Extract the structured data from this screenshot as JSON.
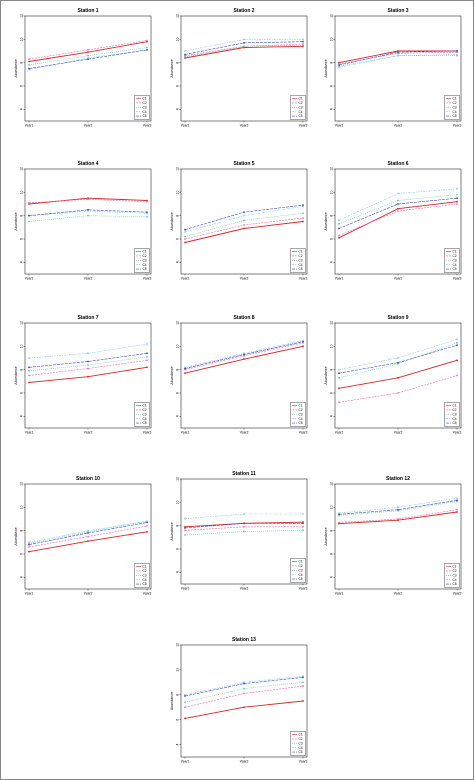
{
  "figure": {
    "colors": {
      "C1": "#d62728",
      "C2": "#ff69b4",
      "C3": "#66cdaa",
      "C4": "#87ceeb",
      "C5": "#3b4cc0"
    },
    "dashes": {
      "C1": "",
      "C2": "2,1",
      "C3": "1,1",
      "C4": "2,1,1,1",
      "C5": "3,1"
    }
  },
  "chart_data": [
    {
      "type": "line",
      "title": "Station 1",
      "xlabel": "",
      "ylabel": "Abundance",
      "categories": [
        "Year1",
        "Year2",
        "Year3"
      ],
      "ylim": [
        3,
        12
      ],
      "yticks": [
        4,
        6,
        8,
        10,
        12
      ],
      "legend": "bottom-right",
      "series": [
        {
          "name": "C1",
          "values": [
            8.1,
            8.9,
            9.8
          ]
        },
        {
          "name": "C2",
          "values": [
            8.3,
            9.1,
            9.9
          ]
        },
        {
          "name": "C3",
          "values": [
            7.8,
            8.6,
            9.3
          ]
        },
        {
          "name": "C4",
          "values": [
            7.4,
            8.4,
            9.1
          ]
        },
        {
          "name": "C5",
          "values": [
            7.5,
            8.3,
            9.1
          ]
        }
      ]
    },
    {
      "type": "line",
      "title": "Station 2",
      "xlabel": "",
      "ylabel": "Abundance",
      "categories": [
        "Year1",
        "Year2",
        "Year3"
      ],
      "ylim": [
        3,
        12
      ],
      "yticks": [
        4,
        6,
        8,
        10,
        12
      ],
      "legend": "bottom-right",
      "series": [
        {
          "name": "C1",
          "values": [
            8.4,
            9.3,
            9.4
          ]
        },
        {
          "name": "C2",
          "values": [
            8.6,
            9.4,
            9.6
          ]
        },
        {
          "name": "C3",
          "values": [
            8.5,
            9.4,
            9.5
          ]
        },
        {
          "name": "C4",
          "values": [
            9.0,
            10.0,
            10.0
          ]
        },
        {
          "name": "C5",
          "values": [
            8.7,
            9.7,
            9.8
          ]
        }
      ]
    },
    {
      "type": "line",
      "title": "Station 3",
      "xlabel": "",
      "ylabel": "Abundance",
      "categories": [
        "Year1",
        "Year2",
        "Year3"
      ],
      "ylim": [
        3,
        12
      ],
      "yticks": [
        4,
        6,
        8,
        10,
        12
      ],
      "legend": "bottom-right",
      "series": [
        {
          "name": "C1",
          "values": [
            8.0,
            9.0,
            9.0
          ]
        },
        {
          "name": "C2",
          "values": [
            7.9,
            8.8,
            8.9
          ]
        },
        {
          "name": "C3",
          "values": [
            7.7,
            8.6,
            8.6
          ]
        },
        {
          "name": "C4",
          "values": [
            7.6,
            8.6,
            8.7
          ]
        },
        {
          "name": "C5",
          "values": [
            7.8,
            8.9,
            9.0
          ]
        }
      ]
    },
    {
      "type": "line",
      "title": "Station 4",
      "xlabel": "",
      "ylabel": "Abundance",
      "categories": [
        "Year1",
        "Year2",
        "Year3"
      ],
      "ylim": [
        3,
        12
      ],
      "yticks": [
        4,
        6,
        8,
        10,
        12
      ],
      "legend": "bottom-right",
      "series": [
        {
          "name": "C1",
          "values": [
            9.0,
            9.5,
            9.3
          ]
        },
        {
          "name": "C2",
          "values": [
            9.1,
            9.4,
            9.2
          ]
        },
        {
          "name": "C3",
          "values": [
            7.5,
            8.0,
            7.9
          ]
        },
        {
          "name": "C4",
          "values": [
            8.0,
            8.4,
            8.2
          ]
        },
        {
          "name": "C5",
          "values": [
            8.0,
            8.5,
            8.3
          ]
        }
      ]
    },
    {
      "type": "line",
      "title": "Station 5",
      "xlabel": "",
      "ylabel": "Abundance",
      "categories": [
        "Year1",
        "Year2",
        "Year3"
      ],
      "ylim": [
        3,
        12
      ],
      "yticks": [
        4,
        6,
        8,
        10,
        12
      ],
      "legend": "bottom-right",
      "series": [
        {
          "name": "C1",
          "values": [
            5.7,
            6.9,
            7.5
          ]
        },
        {
          "name": "C2",
          "values": [
            6.0,
            7.2,
            7.8
          ]
        },
        {
          "name": "C3",
          "values": [
            6.2,
            7.6,
            8.2
          ]
        },
        {
          "name": "C4",
          "values": [
            6.6,
            8.0,
            8.8
          ]
        },
        {
          "name": "C5",
          "values": [
            6.8,
            8.3,
            8.9
          ]
        }
      ]
    },
    {
      "type": "line",
      "title": "Station 6",
      "xlabel": "",
      "ylabel": "Abundance",
      "categories": [
        "Year1",
        "Year2",
        "Year3"
      ],
      "ylim": [
        3,
        12
      ],
      "yticks": [
        4,
        6,
        8,
        10,
        12
      ],
      "legend": "bottom-right",
      "series": [
        {
          "name": "C1",
          "values": [
            6.1,
            8.6,
            9.2
          ]
        },
        {
          "name": "C2",
          "values": [
            6.3,
            8.4,
            9.0
          ]
        },
        {
          "name": "C3",
          "values": [
            7.3,
            9.3,
            9.8
          ]
        },
        {
          "name": "C4",
          "values": [
            7.6,
            9.9,
            10.3
          ]
        },
        {
          "name": "C5",
          "values": [
            6.9,
            9.0,
            9.5
          ]
        }
      ]
    },
    {
      "type": "line",
      "title": "Station 7",
      "xlabel": "",
      "ylabel": "Abundance",
      "categories": [
        "Year1",
        "Year2",
        "Year3"
      ],
      "ylim": [
        3,
        12
      ],
      "yticks": [
        4,
        6,
        8,
        10,
        12
      ],
      "legend": "bottom-right",
      "series": [
        {
          "name": "C1",
          "values": [
            6.9,
            7.4,
            8.2
          ]
        },
        {
          "name": "C2",
          "values": [
            7.5,
            8.1,
            8.8
          ]
        },
        {
          "name": "C3",
          "values": [
            7.9,
            8.4,
            9.1
          ]
        },
        {
          "name": "C4",
          "values": [
            9.0,
            9.4,
            10.2
          ]
        },
        {
          "name": "C5",
          "values": [
            8.2,
            8.7,
            9.4
          ]
        }
      ]
    },
    {
      "type": "line",
      "title": "Station 8",
      "xlabel": "",
      "ylabel": "Abundance",
      "categories": [
        "Year1",
        "Year2",
        "Year3"
      ],
      "ylim": [
        3,
        12
      ],
      "yticks": [
        4,
        6,
        8,
        10,
        12
      ],
      "legend": "bottom-right",
      "series": [
        {
          "name": "C1",
          "values": [
            7.7,
            8.9,
            10.0
          ]
        },
        {
          "name": "C2",
          "values": [
            8.0,
            9.2,
            10.3
          ]
        },
        {
          "name": "C3",
          "values": [
            8.1,
            9.3,
            10.4
          ]
        },
        {
          "name": "C4",
          "values": [
            8.2,
            9.4,
            10.5
          ]
        },
        {
          "name": "C5",
          "values": [
            8.1,
            9.3,
            10.4
          ]
        }
      ]
    },
    {
      "type": "line",
      "title": "Station 9",
      "xlabel": "",
      "ylabel": "Abundance",
      "categories": [
        "Year1",
        "Year2",
        "Year3"
      ],
      "ylim": [
        3,
        12
      ],
      "yticks": [
        4,
        6,
        8,
        10,
        12
      ],
      "legend": "bottom-right",
      "series": [
        {
          "name": "C1",
          "values": [
            6.4,
            7.3,
            8.8
          ]
        },
        {
          "name": "C2",
          "values": [
            5.2,
            6.0,
            7.5
          ]
        },
        {
          "name": "C3",
          "values": [
            7.3,
            8.5,
            10.3
          ]
        },
        {
          "name": "C4",
          "values": [
            8.0,
            9.0,
            10.6
          ]
        },
        {
          "name": "C5",
          "values": [
            7.7,
            8.6,
            10.1
          ]
        }
      ]
    },
    {
      "type": "line",
      "title": "Station 10",
      "xlabel": "",
      "ylabel": "Abundance",
      "categories": [
        "Year1",
        "Year2",
        "Year3"
      ],
      "ylim": [
        3,
        12
      ],
      "yticks": [
        4,
        6,
        8,
        10,
        12
      ],
      "legend": "bottom-right",
      "series": [
        {
          "name": "C1",
          "values": [
            6.2,
            7.1,
            7.9
          ]
        },
        {
          "name": "C2",
          "values": [
            6.6,
            7.5,
            8.4
          ]
        },
        {
          "name": "C3",
          "values": [
            6.9,
            7.9,
            8.8
          ]
        },
        {
          "name": "C4",
          "values": [
            7.0,
            8.0,
            8.8
          ]
        },
        {
          "name": "C5",
          "values": [
            6.8,
            7.8,
            8.7
          ]
        }
      ]
    },
    {
      "type": "line",
      "title": "Station 11",
      "xlabel": "",
      "ylabel": "Abundance",
      "categories": [
        "Year1",
        "Year2",
        "Year3"
      ],
      "ylim": [
        3,
        12
      ],
      "yticks": [
        4,
        6,
        8,
        10,
        12
      ],
      "legend": "bottom-right",
      "series": [
        {
          "name": "C1",
          "values": [
            7.9,
            8.2,
            8.3
          ]
        },
        {
          "name": "C2",
          "values": [
            7.6,
            7.9,
            7.9
          ]
        },
        {
          "name": "C3",
          "values": [
            7.2,
            7.5,
            7.6
          ]
        },
        {
          "name": "C4",
          "values": [
            8.6,
            9.0,
            9.0
          ]
        },
        {
          "name": "C5",
          "values": [
            7.8,
            8.2,
            8.2
          ]
        }
      ]
    },
    {
      "type": "line",
      "title": "Station 12",
      "xlabel": "",
      "ylabel": "Abundance",
      "categories": [
        "Year1",
        "Year2",
        "Year3"
      ],
      "ylim": [
        3,
        12
      ],
      "yticks": [
        4,
        6,
        8,
        10,
        12
      ],
      "legend": "bottom-right",
      "series": [
        {
          "name": "C1",
          "values": [
            8.6,
            8.9,
            9.6
          ]
        },
        {
          "name": "C2",
          "values": [
            8.7,
            9.0,
            9.8
          ]
        },
        {
          "name": "C3",
          "values": [
            9.3,
            9.7,
            10.5
          ]
        },
        {
          "name": "C4",
          "values": [
            9.5,
            10.0,
            10.8
          ]
        },
        {
          "name": "C5",
          "values": [
            9.4,
            9.8,
            10.6
          ]
        }
      ]
    },
    {
      "type": "line",
      "title": "Station 13",
      "xlabel": "",
      "ylabel": "Abundance",
      "categories": [
        "Year1",
        "Year2",
        "Year3"
      ],
      "ylim": [
        3,
        12
      ],
      "yticks": [
        4,
        6,
        8,
        10,
        12
      ],
      "legend": "bottom-right",
      "series": [
        {
          "name": "C1",
          "values": [
            6.1,
            7.0,
            7.5
          ]
        },
        {
          "name": "C2",
          "values": [
            7.0,
            8.1,
            8.7
          ]
        },
        {
          "name": "C3",
          "values": [
            7.4,
            8.5,
            9.0
          ]
        },
        {
          "name": "C4",
          "values": [
            8.0,
            9.0,
            9.5
          ]
        },
        {
          "name": "C5",
          "values": [
            7.9,
            8.9,
            9.4
          ]
        }
      ]
    }
  ]
}
